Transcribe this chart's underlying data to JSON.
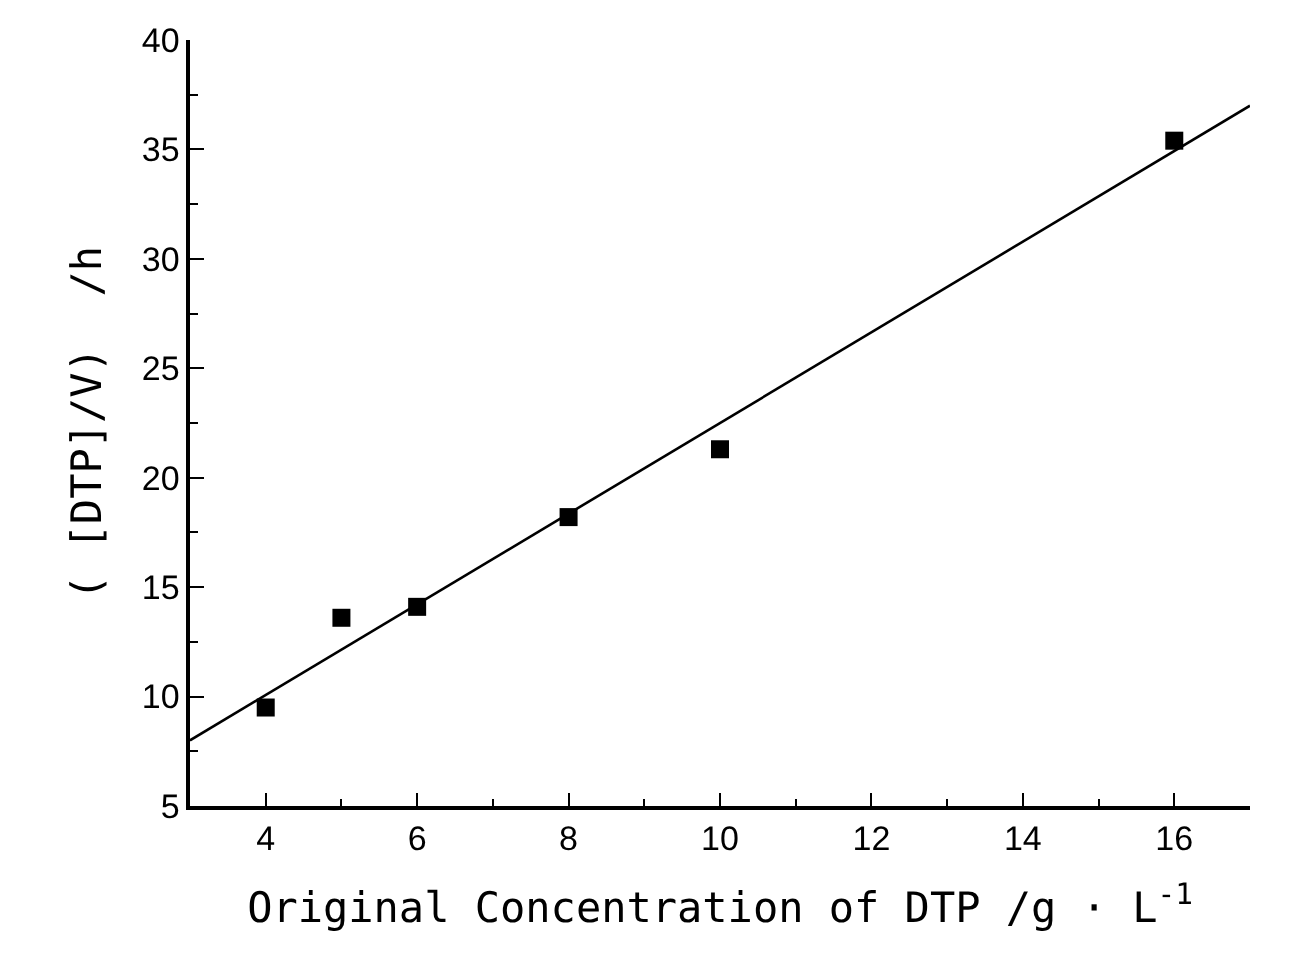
{
  "chart_data": {
    "type": "scatter",
    "xlabel": "Original Concentration of DTP /g · L$^{-1}$",
    "ylabel": "( [DTP]/V)  /h",
    "x": [
      4,
      5,
      6,
      8,
      10,
      16
    ],
    "series": [
      {
        "type": "scatter",
        "color": "#000000",
        "marker": "square",
        "values": [
          9.5,
          13.6,
          14.1,
          18.2,
          21.3,
          35.4
        ]
      },
      {
        "type": "line",
        "color": "#000000",
        "x": [
          3,
          17
        ],
        "values": [
          8,
          37
        ],
        "line_style": "solid"
      }
    ],
    "xlim": [
      3,
      17
    ],
    "xticks": [
      4,
      6,
      8,
      10,
      12,
      14,
      16
    ],
    "ylim": [
      5,
      40
    ],
    "yticks": [
      5,
      10,
      15,
      20,
      25,
      30,
      35,
      40
    ],
    "grid": false
  }
}
